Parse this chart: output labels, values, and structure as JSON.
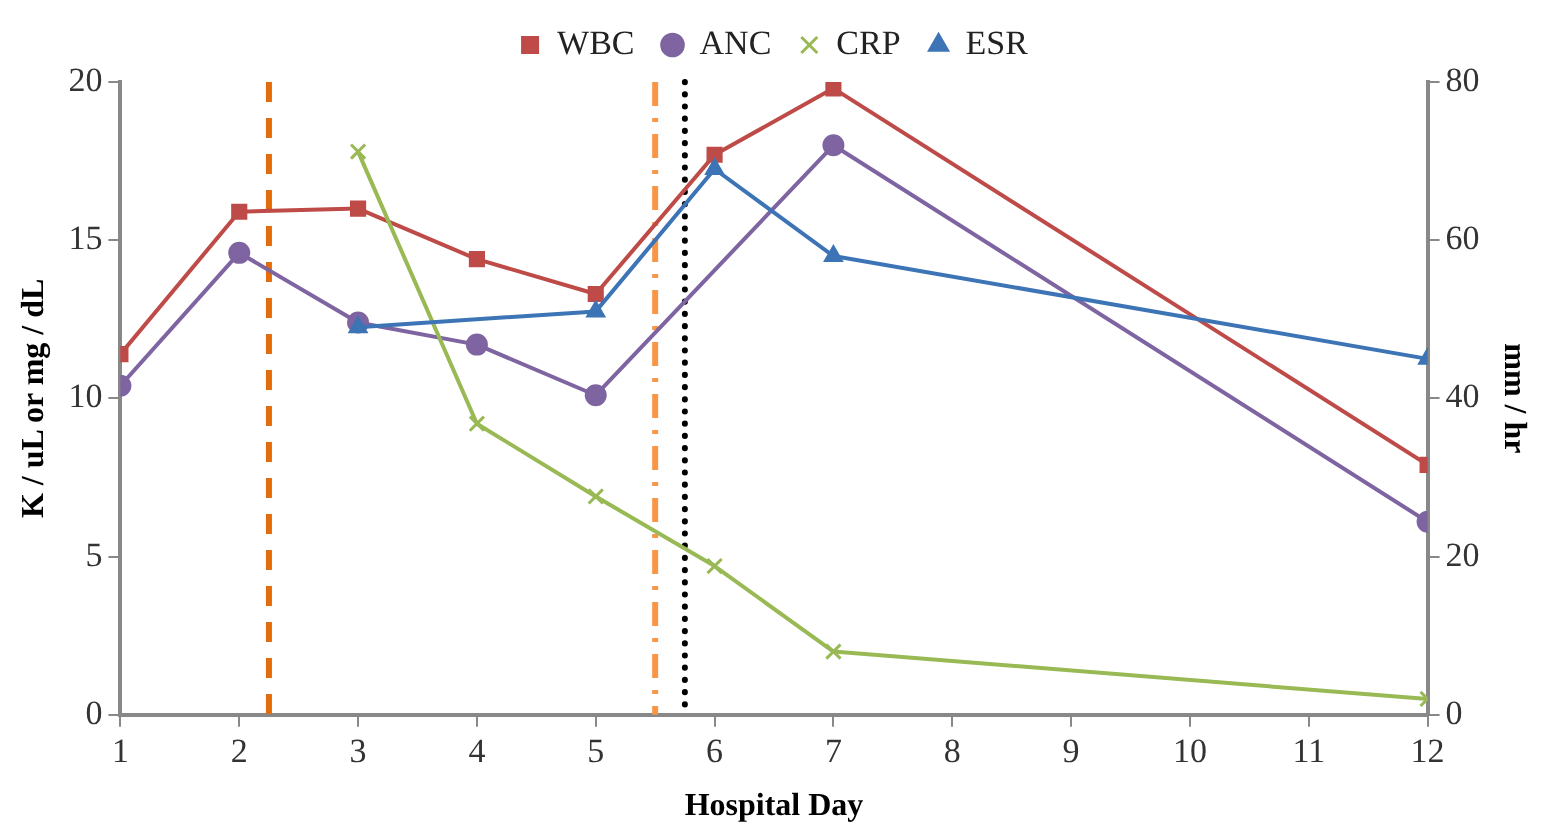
{
  "chart_data": {
    "type": "line",
    "xlabel": "Hospital Day",
    "ylabel": "K / uL or mg / dL",
    "y2label": "mm / hr",
    "xlim": [
      1,
      12
    ],
    "xticks": [
      1,
      2,
      3,
      4,
      5,
      6,
      7,
      8,
      9,
      10,
      11,
      12
    ],
    "ylim": [
      0,
      20
    ],
    "yticks": [
      0,
      5,
      10,
      15,
      20
    ],
    "y2lim": [
      0,
      80
    ],
    "y2ticks": [
      0,
      20,
      40,
      60,
      80
    ],
    "grid": false,
    "legend": "top",
    "line_style": "solid",
    "series": [
      {
        "name": "WBC",
        "color": "#be4b48",
        "marker": "square",
        "x": [
          1,
          2,
          3,
          4,
          5,
          6,
          7,
          12
        ],
        "values": [
          11.4,
          15.9,
          16.0,
          14.4,
          13.3,
          17.7,
          19.8,
          7.9
        ]
      },
      {
        "name": "ANC",
        "color": "#7e64a0",
        "marker": "circle",
        "x": [
          1,
          2,
          3,
          4,
          5,
          7,
          12
        ],
        "values": [
          10.4,
          14.6,
          12.4,
          11.7,
          10.1,
          18.0,
          6.1
        ]
      },
      {
        "name": "CRP",
        "color": "#98b954",
        "marker": "cross",
        "x": [
          3,
          4,
          5,
          6,
          7,
          12
        ],
        "values": [
          17.8,
          9.2,
          6.9,
          4.7,
          2.0,
          0.5
        ]
      },
      {
        "name": "ESR",
        "color": "#3c74b6",
        "marker": "triangle",
        "axis": "y2",
        "x": [
          3,
          5,
          6,
          7,
          12
        ],
        "values": [
          49,
          51,
          69,
          58,
          45
        ]
      }
    ],
    "ref_lines": [
      {
        "axis": "x",
        "value": 2.25,
        "color": "#e46c0a",
        "line_style": "dashed"
      },
      {
        "axis": "x",
        "value": 5.5,
        "color": "#f79646",
        "line_style": "dashdot"
      },
      {
        "axis": "x",
        "value": 5.75,
        "color": "#000000",
        "line_style": "dotted"
      }
    ]
  }
}
